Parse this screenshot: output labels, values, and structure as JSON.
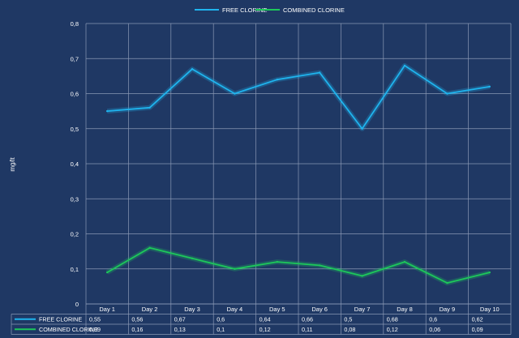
{
  "chart_data": {
    "type": "line",
    "categories": [
      "Day 1",
      "Day 2",
      "Day 3",
      "Day 4",
      "Day 5",
      "Day 6",
      "Day 7",
      "Day 8",
      "Day 9",
      "Day 10"
    ],
    "series": [
      {
        "name": "FREE CLORINE",
        "values": [
          0.55,
          0.56,
          0.67,
          0.6,
          0.64,
          0.66,
          0.5,
          0.68,
          0.6,
          0.62
        ],
        "labels": [
          "0,55",
          "0,56",
          "0,67",
          "0,6",
          "0,64",
          "0,66",
          "0,5",
          "0,68",
          "0,6",
          "0,62"
        ],
        "color": "#1fb4ee"
      },
      {
        "name": "COMBINED CLORINE",
        "values": [
          0.09,
          0.16,
          0.13,
          0.1,
          0.12,
          0.11,
          0.08,
          0.12,
          0.06,
          0.09
        ],
        "labels": [
          "0,09",
          "0,16",
          "0,13",
          "0,1",
          "0,12",
          "0,11",
          "0,08",
          "0,12",
          "0,06",
          "0,09"
        ],
        "color": "#1dc85a"
      }
    ],
    "ylabel": "mg/lt",
    "ylim": [
      0,
      0.8
    ],
    "yticks": [
      "0",
      "0,1",
      "0,2",
      "0,3",
      "0,4",
      "0,5",
      "0,6",
      "0,7",
      "0,8"
    ],
    "grid": true,
    "legend": "top-center",
    "data_table": true
  }
}
